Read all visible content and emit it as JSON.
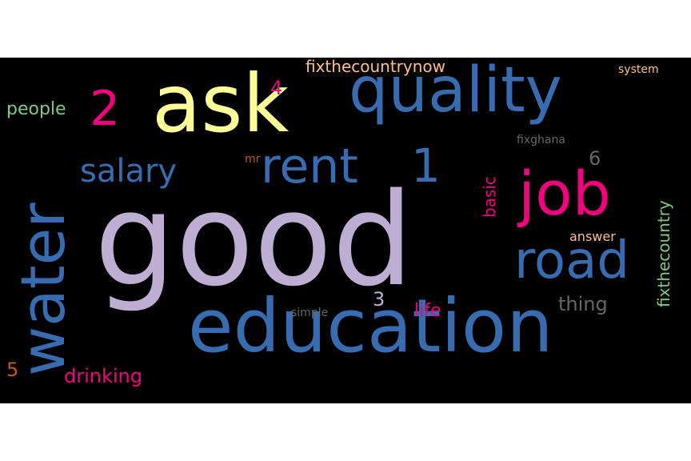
{
  "words": {
    "good": {
      "text": "good",
      "color": "#beaed4"
    },
    "ask": {
      "text": "ask",
      "color": "#ffff99"
    },
    "quality": {
      "text": "quality",
      "color": "#386cb0"
    },
    "education": {
      "text": "education",
      "color": "#386cb0"
    },
    "job": {
      "text": "job",
      "color": "#f0027f"
    },
    "water": {
      "text": "water",
      "color": "#386cb0"
    },
    "road": {
      "text": "road",
      "color": "#386cb0"
    },
    "rent": {
      "text": "rent",
      "color": "#386cb0"
    },
    "one": {
      "text": "1",
      "color": "#386cb0"
    },
    "salary": {
      "text": "salary",
      "color": "#386cb0"
    },
    "two": {
      "text": "2",
      "color": "#f0027f"
    },
    "four": {
      "text": "4",
      "color": "#f0027f"
    },
    "fixthecountrynow": {
      "text": "fixthecountrynow",
      "color": "#fdc086"
    },
    "system": {
      "text": "system",
      "color": "#fdc086"
    },
    "people": {
      "text": "people",
      "color": "#7fc97f"
    },
    "six": {
      "text": "6",
      "color": "#666666"
    },
    "fixghana": {
      "text": "fixghana",
      "color": "#666666"
    },
    "mr": {
      "text": "mr",
      "color": "#bf5b17"
    },
    "basic": {
      "text": "basic",
      "color": "#f0027f"
    },
    "fixthecountry": {
      "text": "fixthecountry",
      "color": "#7fc97f"
    },
    "answer": {
      "text": "answer",
      "color": "#fdc086"
    },
    "thing": {
      "text": "thing",
      "color": "#666666"
    },
    "three": {
      "text": "3",
      "color": "#beaed4"
    },
    "life": {
      "text": "life",
      "color": "#f0027f"
    },
    "simple": {
      "text": "simple",
      "color": "#666666"
    },
    "drinking": {
      "text": "drinking",
      "color": "#f0027f"
    },
    "five": {
      "text": "5",
      "color": "#bf5b17"
    }
  }
}
